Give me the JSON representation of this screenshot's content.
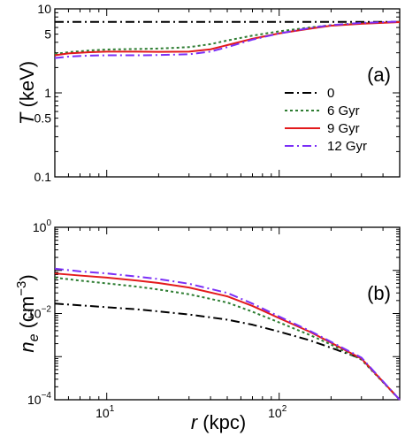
{
  "chart_data": [
    {
      "type": "line",
      "panel_label": "(a)",
      "ylabel_symbol": "T",
      "ylabel_unit": " (keV)",
      "xscale": "log",
      "yscale": "log",
      "xlim": [
        5,
        500
      ],
      "ylim": [
        0.1,
        10
      ],
      "yticks": [
        {
          "value": 0.1,
          "label": "0.1"
        },
        {
          "value": 0.5,
          "label": "0.5"
        },
        {
          "value": 1,
          "label": "1"
        },
        {
          "value": 5,
          "label": "5"
        },
        {
          "value": 10,
          "label": "10"
        }
      ],
      "legend_position": "lower-right",
      "series": [
        {
          "name": "0",
          "color": "#000000",
          "dash": "dashdot",
          "points": [
            [
              5,
              7.0
            ],
            [
              500,
              7.0
            ]
          ]
        },
        {
          "name": "6 Gyr",
          "color": "#2e7d32",
          "dash": "dotted",
          "points": [
            [
              5,
              2.9
            ],
            [
              6,
              3.05
            ],
            [
              8,
              3.2
            ],
            [
              10,
              3.28
            ],
            [
              15,
              3.33
            ],
            [
              20,
              3.37
            ],
            [
              30,
              3.5
            ],
            [
              40,
              3.8
            ],
            [
              50,
              4.2
            ],
            [
              70,
              4.8
            ],
            [
              100,
              5.4
            ],
            [
              150,
              6.0
            ],
            [
              200,
              6.4
            ],
            [
              300,
              6.7
            ],
            [
              500,
              7.0
            ]
          ]
        },
        {
          "name": "9 Gyr",
          "color": "#e31a1c",
          "dash": "solid",
          "points": [
            [
              5,
              2.8
            ],
            [
              6,
              2.95
            ],
            [
              8,
              3.05
            ],
            [
              10,
              3.1
            ],
            [
              15,
              3.1
            ],
            [
              20,
              3.08
            ],
            [
              30,
              3.1
            ],
            [
              40,
              3.3
            ],
            [
              50,
              3.7
            ],
            [
              70,
              4.4
            ],
            [
              100,
              5.1
            ],
            [
              150,
              5.8
            ],
            [
              200,
              6.3
            ],
            [
              300,
              6.65
            ],
            [
              500,
              6.95
            ]
          ]
        },
        {
          "name": "12 Gyr",
          "color": "#7b2ff7",
          "dash": "dashdot",
          "points": [
            [
              5,
              2.6
            ],
            [
              6,
              2.7
            ],
            [
              8,
              2.78
            ],
            [
              10,
              2.8
            ],
            [
              15,
              2.8
            ],
            [
              20,
              2.82
            ],
            [
              30,
              2.88
            ],
            [
              40,
              3.1
            ],
            [
              50,
              3.5
            ],
            [
              70,
              4.3
            ],
            [
              100,
              5.1
            ],
            [
              150,
              5.9
            ],
            [
              200,
              6.4
            ],
            [
              300,
              6.8
            ],
            [
              500,
              7.05
            ]
          ]
        }
      ]
    },
    {
      "type": "line",
      "panel_label": "(b)",
      "ylabel_symbol": "n",
      "ylabel_sub": "e",
      "ylabel_unit": " (cm",
      "ylabel_exp": "−3",
      "ylabel_close": ")",
      "xlabel_symbol": "r",
      "xlabel_unit": " (kpc)",
      "xscale": "log",
      "yscale": "log",
      "xlim": [
        5,
        500
      ],
      "ylim": [
        0.0001,
        1
      ],
      "xticks": [
        {
          "value": 10,
          "base": "10",
          "exp": "1"
        },
        {
          "value": 100,
          "base": "10",
          "exp": "2"
        }
      ],
      "yticks": [
        {
          "value": 0.0001,
          "base": "10",
          "exp": "−4"
        },
        {
          "value": 0.01,
          "base": "10",
          "exp": "−2"
        },
        {
          "value": 1,
          "base": "10",
          "exp": "0"
        }
      ],
      "series": [
        {
          "name": "0",
          "color": "#000000",
          "dash": "dashdot",
          "points": [
            [
              5,
              0.017
            ],
            [
              7,
              0.0155
            ],
            [
              10,
              0.014
            ],
            [
              15,
              0.0125
            ],
            [
              20,
              0.0112
            ],
            [
              30,
              0.0095
            ],
            [
              50,
              0.0072
            ],
            [
              70,
              0.0055
            ],
            [
              100,
              0.0038
            ],
            [
              150,
              0.0024
            ],
            [
              200,
              0.0016
            ],
            [
              300,
              0.0009
            ],
            [
              500,
              0.0001
            ]
          ]
        },
        {
          "name": "6 Gyr",
          "color": "#2e7d32",
          "dash": "dotted",
          "points": [
            [
              5,
              0.068
            ],
            [
              7,
              0.058
            ],
            [
              10,
              0.05
            ],
            [
              15,
              0.042
            ],
            [
              20,
              0.036
            ],
            [
              30,
              0.028
            ],
            [
              50,
              0.018
            ],
            [
              70,
              0.011
            ],
            [
              100,
              0.0062
            ],
            [
              150,
              0.0032
            ],
            [
              200,
              0.0019
            ],
            [
              300,
              0.00085
            ],
            [
              500,
              0.0001
            ]
          ]
        },
        {
          "name": "9 Gyr",
          "color": "#e31a1c",
          "dash": "solid",
          "points": [
            [
              5,
              0.085
            ],
            [
              7,
              0.076
            ],
            [
              10,
              0.068
            ],
            [
              15,
              0.058
            ],
            [
              20,
              0.051
            ],
            [
              30,
              0.04
            ],
            [
              50,
              0.025
            ],
            [
              70,
              0.015
            ],
            [
              100,
              0.0078
            ],
            [
              150,
              0.0038
            ],
            [
              200,
              0.0021
            ],
            [
              300,
              0.0009
            ],
            [
              500,
              0.0001
            ]
          ]
        },
        {
          "name": "12 Gyr",
          "color": "#7b2ff7",
          "dash": "dashdot",
          "points": [
            [
              5,
              0.11
            ],
            [
              7,
              0.095
            ],
            [
              10,
              0.085
            ],
            [
              15,
              0.072
            ],
            [
              20,
              0.063
            ],
            [
              30,
              0.049
            ],
            [
              50,
              0.03
            ],
            [
              70,
              0.017
            ],
            [
              100,
              0.0085
            ],
            [
              150,
              0.004
            ],
            [
              200,
              0.0022
            ],
            [
              300,
              0.00095
            ],
            [
              500,
              0.0001
            ]
          ]
        }
      ]
    }
  ]
}
